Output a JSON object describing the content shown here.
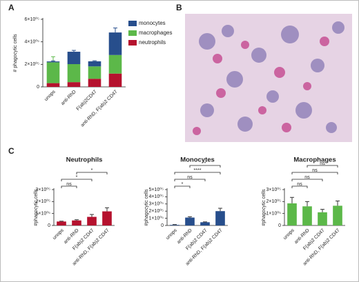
{
  "panel_labels": [
    "A",
    "B",
    "C"
  ],
  "chart_data": [
    {
      "type": "stacked_bar",
      "y_label": "# phagocytic cells",
      "categories": [
        "unops",
        "anti-RhD",
        "F(ab)2CD47",
        "anti-RhD, F(ab)2 CD47"
      ],
      "series": [
        {
          "name": "neutrophils",
          "color": "#b5122e",
          "values": [
            33000,
            42000,
            72000,
            118000
          ],
          "errors": [
            3000,
            6000,
            20000,
            30000
          ]
        },
        {
          "name": "macrophages",
          "color": "#5cb849",
          "values": [
            185000,
            160000,
            110000,
            165000
          ],
          "errors": [
            50000,
            40000,
            25000,
            40000
          ]
        },
        {
          "name": "monocytes",
          "color": "#274e8c",
          "values": [
            8000,
            110000,
            45000,
            200000
          ],
          "errors": [
            5000,
            12000,
            5000,
            40000
          ]
        }
      ],
      "ylim": [
        0,
        600000
      ],
      "yticks": [
        0,
        {
          "value": 200000,
          "label": "2×10⁰⁵"
        },
        {
          "value": 400000,
          "label": "4×10⁰⁵"
        },
        {
          "value": 600000,
          "label": "6×10⁰⁵"
        }
      ],
      "legend": "right"
    },
    {
      "type": "bar",
      "title": "Neutrophils",
      "y_label": "#phagocytic cells",
      "color": "#b5122e",
      "categories": [
        "unops",
        "anti-RhD",
        "F(ab)2 CD47",
        "anti-RhD, F(ab)2 CD47"
      ],
      "values": [
        33000,
        42000,
        72000,
        118000
      ],
      "errors": [
        3000,
        6000,
        20000,
        30000
      ],
      "ylim": [
        0,
        300000
      ],
      "yticks": [
        0,
        {
          "value": 100000,
          "label": "1×10⁰⁵"
        },
        {
          "value": 200000,
          "label": "2×10⁰⁵"
        },
        {
          "value": 300000,
          "label": "3×10⁰⁵"
        }
      ],
      "significance": [
        {
          "pair": [
            "unops",
            "anti-RhD"
          ],
          "label": "ns"
        },
        {
          "pair": [
            "unops",
            "F(ab)2 CD47"
          ],
          "label": "*"
        },
        {
          "pair": [
            "anti-RhD",
            "anti-RhD, F(ab)2 CD47"
          ],
          "label": "*"
        }
      ]
    },
    {
      "type": "bar",
      "title": "Monocytes",
      "y_label": "#phagocytic cells",
      "color": "#274e8c",
      "categories": [
        "unops",
        "anti-RhD",
        "F(ab)2 CD47",
        "anti-RhD, F(ab)2 CD47"
      ],
      "values": [
        8000,
        110000,
        45000,
        200000
      ],
      "errors": [
        5000,
        12000,
        5000,
        40000
      ],
      "ylim": [
        0,
        500000
      ],
      "yticks": [
        0,
        {
          "value": 100000,
          "label": "1×10⁰⁵"
        },
        {
          "value": 200000,
          "label": "2×10⁰⁵"
        },
        {
          "value": 300000,
          "label": "3×10⁰⁵"
        },
        {
          "value": 400000,
          "label": "4×10⁰⁵"
        },
        {
          "value": 500000,
          "label": "5×10⁰⁵"
        }
      ],
      "significance": [
        {
          "pair": [
            "unops",
            "anti-RhD"
          ],
          "label": "*"
        },
        {
          "pair": [
            "unops",
            "F(ab)2 CD47"
          ],
          "label": "ns"
        },
        {
          "pair": [
            "unops",
            "anti-RhD, F(ab)2 CD47"
          ],
          "label": "****"
        },
        {
          "pair": [
            "anti-RhD",
            "anti-RhD, F(ab)2 CD47"
          ],
          "label": "*"
        }
      ]
    },
    {
      "type": "bar",
      "title": "Macrophages",
      "y_label": "#phagocytic cells",
      "color": "#5cb849",
      "categories": [
        "unops",
        "anti-RhD",
        "F(ab)2 CD47",
        "anti-RhD, F(ab)2 CD47"
      ],
      "values": [
        185000,
        160000,
        110000,
        165000
      ],
      "errors": [
        50000,
        40000,
        25000,
        40000
      ],
      "ylim": [
        0,
        300000
      ],
      "yticks": [
        0,
        {
          "value": 100000,
          "label": "1×10⁰⁵"
        },
        {
          "value": 200000,
          "label": "2×10⁰⁵"
        },
        {
          "value": 300000,
          "label": "3×10⁰⁵"
        }
      ],
      "significance": [
        {
          "pair": [
            "unops",
            "anti-RhD"
          ],
          "label": "ns"
        },
        {
          "pair": [
            "unops",
            "F(ab)2 CD47"
          ],
          "label": "ns"
        },
        {
          "pair": [
            "unops",
            "anti-RhD, F(ab)2 CD47"
          ],
          "label": "ns"
        },
        {
          "pair": [
            "anti-RhD",
            "anti-RhD, F(ab)2 CD47"
          ],
          "label": "ns"
        }
      ]
    }
  ]
}
